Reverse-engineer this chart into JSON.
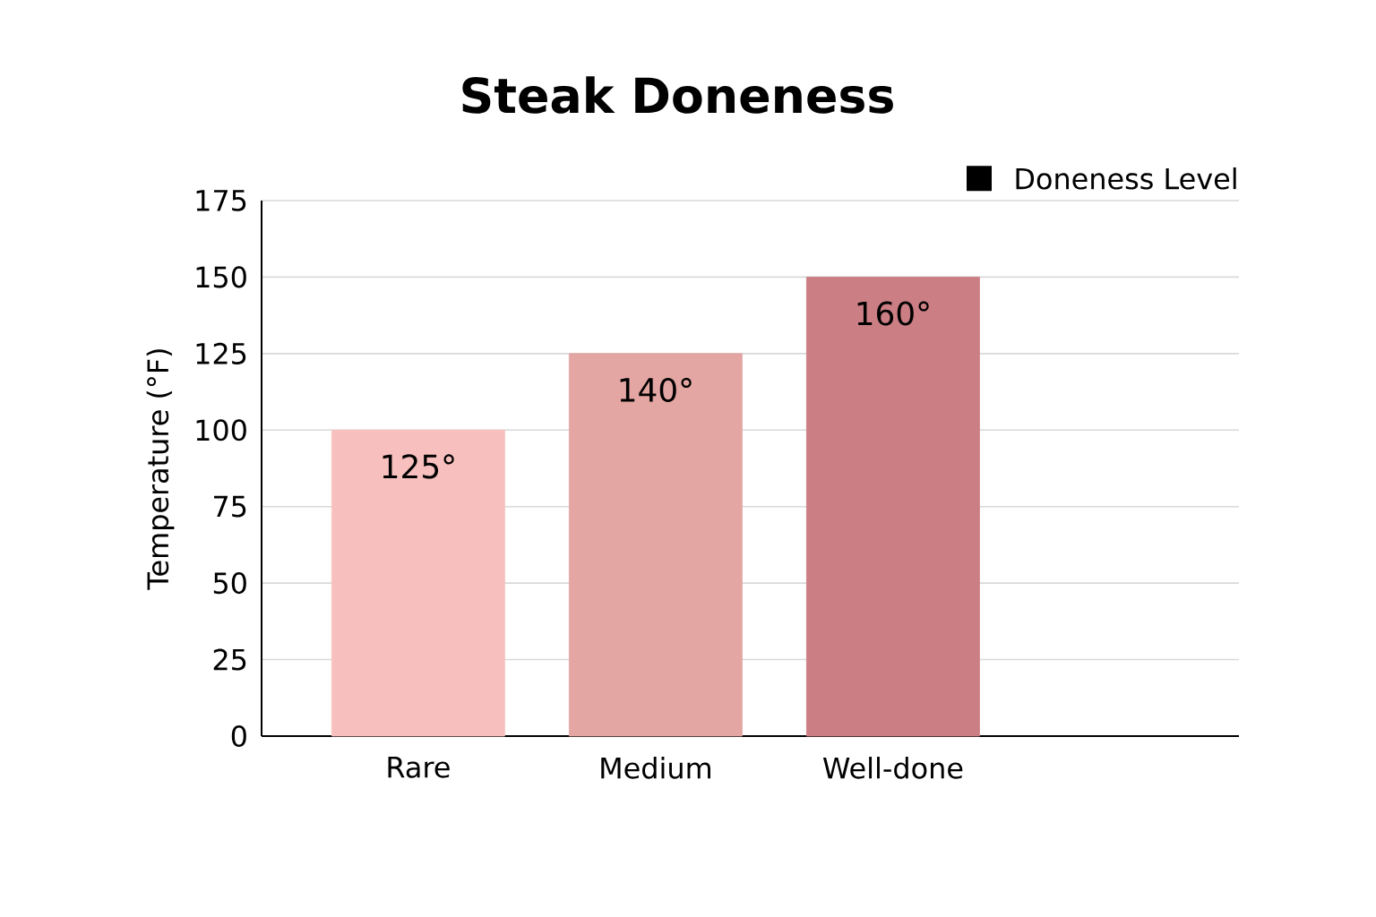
{
  "chart_data": {
    "type": "bar",
    "title": "Steak Doneness",
    "ylabel": "Temperature (°F)",
    "categories": [
      "Rare",
      "Medium",
      "Well-done",
      null
    ],
    "series": [
      {
        "name": "Doneness Level",
        "color": "#000000",
        "colors": [
          "#f7c0be",
          "#e3a6a3",
          "#cb7e84",
          null
        ],
        "values": [
          100,
          125,
          150,
          null
        ]
      }
    ],
    "annotations": [
      {
        "text": "125°",
        "x": "Rare",
        "y": 100
      },
      {
        "text": "140°",
        "x": "Medium",
        "y": 125
      },
      {
        "text": "160°",
        "x": "Well-done",
        "y": 150
      }
    ],
    "ylim": [
      0,
      175
    ],
    "yticks": [
      0,
      25,
      50,
      75,
      100,
      125,
      150,
      175
    ],
    "grid": "y",
    "legend": "top right"
  }
}
